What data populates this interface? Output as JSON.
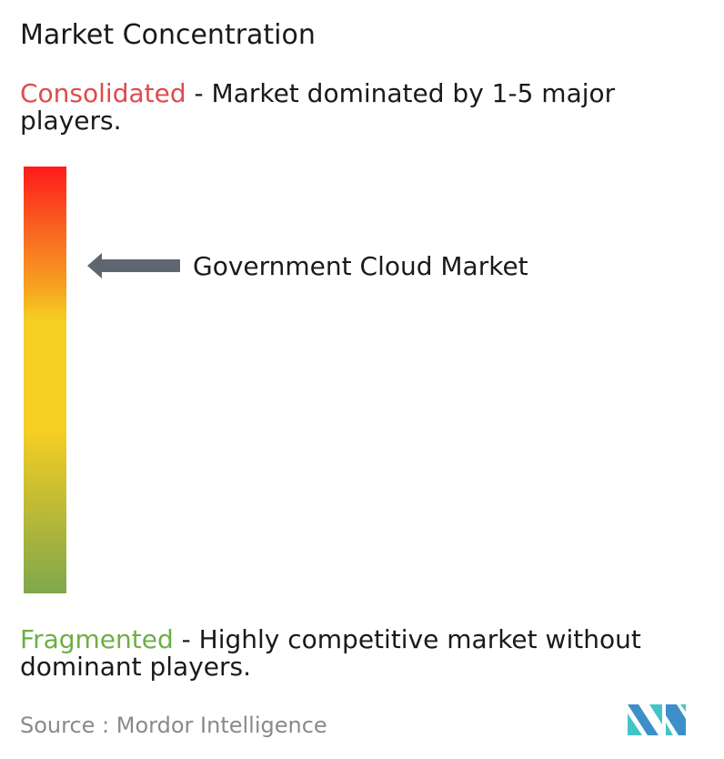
{
  "title": "Market Concentration",
  "consolidated": {
    "label": "Consolidated",
    "description": " - Market dominated by 1-5 major players.",
    "color": "#e04a4a"
  },
  "fragmented": {
    "label": "Fragmented",
    "description": " - Highly competitive market without dominant players.",
    "color": "#6fae45"
  },
  "marker": {
    "label": "Government Cloud Market",
    "icon": "arrow-left-icon",
    "level_from_top_percent": 23
  },
  "source": "Source :  Mordor Intelligence",
  "logo": {
    "name": "Mordor Intelligence logo",
    "colors": [
      "#3d8fc9",
      "#45c4c8"
    ]
  }
}
